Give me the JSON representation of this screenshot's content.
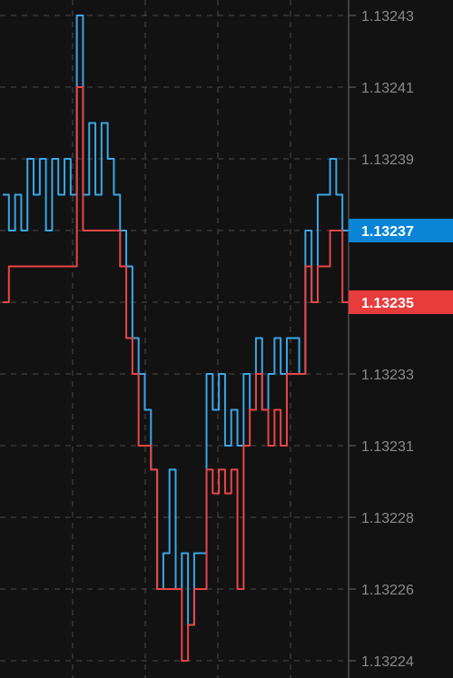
{
  "chart_data": {
    "type": "line",
    "title": "",
    "xlabel": "",
    "ylabel": "",
    "ylim": [
      1.13224,
      1.13243
    ],
    "y_ticks": [
      "1.13243",
      "1.13241",
      "1.13239",
      "1.13237",
      "1.13235",
      "1.13233",
      "1.13231",
      "1.13228",
      "1.13226",
      "1.13224"
    ],
    "grid": true,
    "series": [
      {
        "key": "ask",
        "color": "#3aa6e6",
        "points": [
          [
            0,
            1.13238
          ],
          [
            1,
            1.13237
          ],
          [
            2,
            1.13238
          ],
          [
            3,
            1.13237
          ],
          [
            4,
            1.13239
          ],
          [
            5,
            1.13238
          ],
          [
            6,
            1.13239
          ],
          [
            7,
            1.13237
          ],
          [
            8,
            1.13239
          ],
          [
            9,
            1.13238
          ],
          [
            10,
            1.13239
          ],
          [
            11,
            1.13238
          ],
          [
            12,
            1.13243
          ],
          [
            13,
            1.13238
          ],
          [
            14,
            1.1324
          ],
          [
            15,
            1.13238
          ],
          [
            16,
            1.1324
          ],
          [
            17,
            1.13239
          ],
          [
            18,
            1.13238
          ],
          [
            19,
            1.13237
          ],
          [
            20,
            1.13236
          ],
          [
            21,
            1.13234
          ],
          [
            22,
            1.13233
          ],
          [
            23,
            1.13232
          ],
          [
            24,
            1.1323
          ],
          [
            25,
            1.13226
          ],
          [
            26,
            1.13227
          ],
          [
            27,
            1.1323
          ],
          [
            28,
            1.13226
          ],
          [
            29,
            1.13227
          ],
          [
            30,
            1.13225
          ],
          [
            31,
            1.13227
          ],
          [
            32,
            1.13227
          ],
          [
            33,
            1.13233
          ],
          [
            34,
            1.13232
          ],
          [
            35,
            1.13233
          ],
          [
            36,
            1.13231
          ],
          [
            37,
            1.13232
          ],
          [
            38,
            1.13231
          ],
          [
            39,
            1.13233
          ],
          [
            40,
            1.13232
          ],
          [
            41,
            1.13234
          ],
          [
            42,
            1.13232
          ],
          [
            43,
            1.13233
          ],
          [
            44,
            1.13234
          ],
          [
            45,
            1.13233
          ],
          [
            46,
            1.13234
          ],
          [
            47,
            1.13234
          ],
          [
            48,
            1.13233
          ],
          [
            49,
            1.13237
          ],
          [
            50,
            1.13235
          ],
          [
            51,
            1.13238
          ],
          [
            52,
            1.13238
          ],
          [
            53,
            1.13239
          ],
          [
            54,
            1.13238
          ],
          [
            55,
            1.13237
          ],
          [
            56,
            1.13237
          ]
        ]
      },
      {
        "key": "bid",
        "color": "#e84545",
        "points": [
          [
            0,
            1.13235
          ],
          [
            1,
            1.13236
          ],
          [
            2,
            1.13236
          ],
          [
            3,
            1.13236
          ],
          [
            4,
            1.13236
          ],
          [
            5,
            1.13236
          ],
          [
            6,
            1.13236
          ],
          [
            7,
            1.13236
          ],
          [
            8,
            1.13236
          ],
          [
            9,
            1.13236
          ],
          [
            10,
            1.13236
          ],
          [
            11,
            1.13236
          ],
          [
            12,
            1.13241
          ],
          [
            13,
            1.13237
          ],
          [
            14,
            1.13237
          ],
          [
            15,
            1.13237
          ],
          [
            16,
            1.13237
          ],
          [
            17,
            1.13237
          ],
          [
            18,
            1.13237
          ],
          [
            19,
            1.13236
          ],
          [
            20,
            1.13234
          ],
          [
            21,
            1.13233
          ],
          [
            22,
            1.13231
          ],
          [
            23,
            1.13231
          ],
          [
            24,
            1.1323
          ],
          [
            25,
            1.13226
          ],
          [
            26,
            1.13226
          ],
          [
            27,
            1.13226
          ],
          [
            28,
            1.13226
          ],
          [
            29,
            1.13224
          ],
          [
            30,
            1.13225
          ],
          [
            31,
            1.13226
          ],
          [
            32,
            1.13226
          ],
          [
            33,
            1.1323
          ],
          [
            34,
            1.13229
          ],
          [
            35,
            1.1323
          ],
          [
            36,
            1.13229
          ],
          [
            37,
            1.1323
          ],
          [
            38,
            1.13226
          ],
          [
            39,
            1.13231
          ],
          [
            40,
            1.13232
          ],
          [
            41,
            1.13233
          ],
          [
            42,
            1.13232
          ],
          [
            43,
            1.13231
          ],
          [
            44,
            1.13232
          ],
          [
            45,
            1.13231
          ],
          [
            46,
            1.13233
          ],
          [
            47,
            1.13233
          ],
          [
            48,
            1.13233
          ],
          [
            49,
            1.13236
          ],
          [
            50,
            1.13235
          ],
          [
            51,
            1.13236
          ],
          [
            52,
            1.13236
          ],
          [
            53,
            1.13237
          ],
          [
            54,
            1.13237
          ],
          [
            55,
            1.13235
          ],
          [
            56,
            1.13235
          ]
        ]
      }
    ],
    "current_ask": {
      "label": "1.13237",
      "color": "#0a84d6"
    },
    "current_bid": {
      "label": "1.13235",
      "color": "#e83c3c"
    }
  }
}
